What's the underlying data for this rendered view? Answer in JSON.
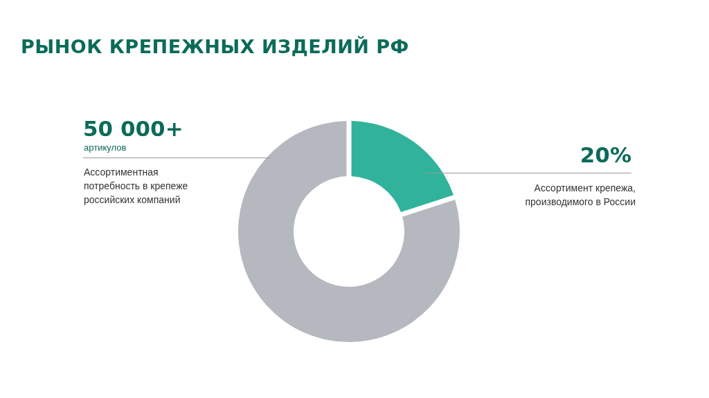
{
  "chart_data": {
    "type": "donut",
    "title": "РЫНОК КРЕПЕЖНЫХ ИЗДЕЛИЙ РФ",
    "categories": [
      "Ассортимент крепежа, производимого в России",
      null
    ],
    "values": [
      20,
      80
    ],
    "colors": [
      "#30b39a",
      "#b5b8bf"
    ],
    "value_labels": [
      "20%",
      null
    ],
    "annotations": [
      "50 000+",
      "артикулов",
      "Ассортиментная потребность в крепеже российских компаний"
    ]
  }
}
